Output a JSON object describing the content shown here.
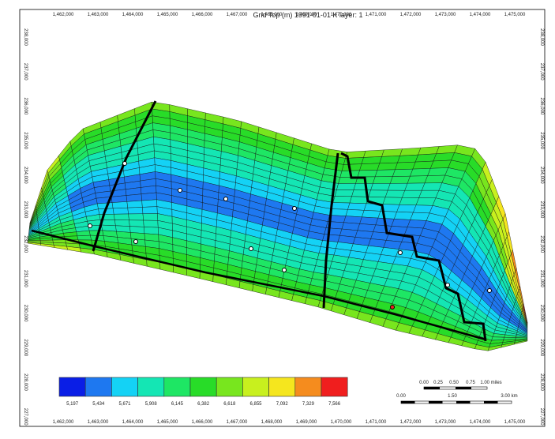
{
  "title": "Grid Top (m) 1991-01-01     K layer: 1",
  "x_ticks": [
    "1,462,000",
    "1,463,000",
    "1,464,000",
    "1,465,000",
    "1,466,000",
    "1,467,000",
    "1,468,000",
    "1,469,000",
    "1,470,000",
    "1,471,000",
    "1,472,000",
    "1,473,000",
    "1,474,000",
    "1,475,000"
  ],
  "y_ticks": [
    "238,000",
    "237,000",
    "236,000",
    "235,000",
    "234,000",
    "233,000",
    "232,000",
    "231,000",
    "230,000",
    "229,000",
    "228,000",
    "227,000"
  ],
  "legend": {
    "labels": [
      "5,197",
      "5,434",
      "5,671",
      "5,908",
      "6,145",
      "6,382",
      "6,618",
      "6,855",
      "7,092",
      "7,329",
      "7,566"
    ],
    "colors": [
      "#0a1ee6",
      "#1e78f0",
      "#14d2f5",
      "#14e6b4",
      "#1ee664",
      "#28dc28",
      "#78e61e",
      "#c8f01e",
      "#f5e61e",
      "#f58c1e",
      "#f01e1e"
    ]
  },
  "scale": {
    "miles": [
      "0.00",
      "0.25",
      "0.50",
      "0.75",
      "1.00 miles"
    ],
    "km": [
      "0.00",
      "1.50",
      "3.00 km"
    ]
  }
}
